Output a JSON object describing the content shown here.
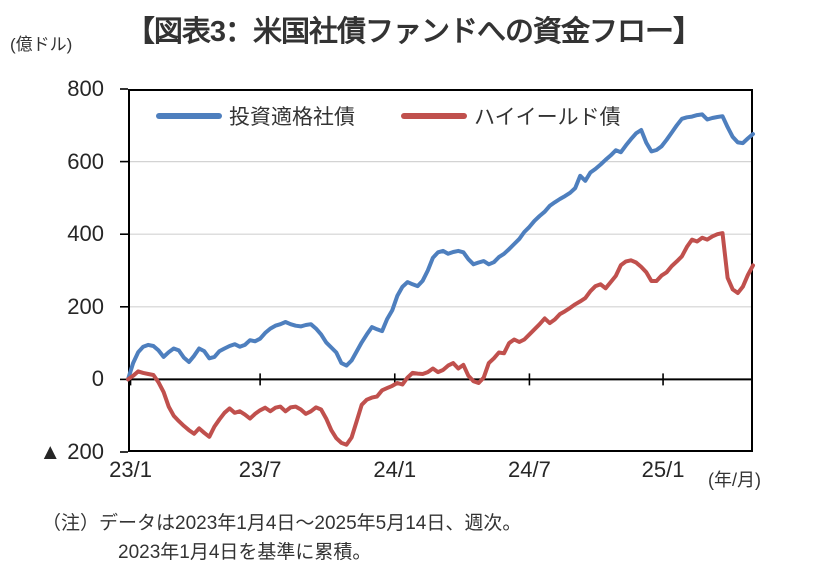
{
  "title": "【図表3：米国社債ファンドへの資金フロー】",
  "unit_label": "(億ドル)",
  "x_unit_label": "(年/月)",
  "notes": [
    "（注）データは2023年1月4日～2025年5月14日、週次。",
    "2023年1月4日を基準に累積。"
  ],
  "colors": {
    "investment_grade": "#4E7FBE",
    "high_yield": "#C0504D",
    "gridline": "#D3D3D3",
    "axis": "#000000",
    "text": "#333333"
  },
  "chart_data": {
    "type": "line",
    "title": "米国社債ファンドへの資金フロー",
    "ylabel": "億ドル",
    "x_range": [
      "2023/1/4",
      "2025/5/14"
    ],
    "x_frequency": "weekly",
    "weeks": 124,
    "ylim": [
      -200,
      800
    ],
    "gridlines": [
      600,
      400,
      200
    ],
    "legend_position": "top-inside",
    "yticks": [
      {
        "label": "800",
        "value": 800
      },
      {
        "label": "600",
        "value": 600
      },
      {
        "label": "400",
        "value": 400
      },
      {
        "label": "200",
        "value": 200
      },
      {
        "label": "0",
        "value": 0
      },
      {
        "label": "▲ 200",
        "value": -200
      }
    ],
    "xticks": [
      {
        "label": "23/1",
        "week": 0.5
      },
      {
        "label": "23/7",
        "week": 26
      },
      {
        "label": "24/1",
        "week": 52.5
      },
      {
        "label": "24/7",
        "week": 79
      },
      {
        "label": "25/1",
        "week": 105.3
      }
    ],
    "series": [
      {
        "name": "投資適格社債",
        "color": "#4E7FBE",
        "values": [
          0,
          45,
          75,
          90,
          95,
          92,
          80,
          62,
          75,
          85,
          80,
          60,
          48,
          65,
          85,
          78,
          58,
          62,
          78,
          85,
          92,
          97,
          90,
          95,
          108,
          105,
          112,
          128,
          140,
          148,
          152,
          158,
          152,
          148,
          146,
          150,
          152,
          140,
          124,
          102,
          88,
          74,
          45,
          38,
          52,
          77,
          102,
          124,
          144,
          138,
          133,
          166,
          190,
          230,
          255,
          268,
          262,
          257,
          272,
          300,
          335,
          350,
          354,
          346,
          351,
          354,
          350,
          331,
          317,
          322,
          326,
          317,
          323,
          337,
          346,
          359,
          373,
          387,
          406,
          420,
          437,
          450,
          462,
          478,
          488,
          497,
          505,
          514,
          527,
          561,
          547,
          570,
          580,
          592,
          605,
          617,
          631,
          626,
          645,
          662,
          678,
          687,
          652,
          628,
          632,
          642,
          660,
          680,
          700,
          718,
          722,
          724,
          728,
          730,
          716,
          720,
          723,
          725,
          695,
          668,
          653,
          651,
          664,
          676
        ]
      },
      {
        "name": "ハイイールド債",
        "color": "#C0504D",
        "values": [
          0,
          10,
          22,
          18,
          15,
          12,
          -8,
          -35,
          -75,
          -100,
          -115,
          -128,
          -140,
          -150,
          -135,
          -147,
          -158,
          -130,
          -110,
          -92,
          -80,
          -92,
          -88,
          -97,
          -108,
          -95,
          -85,
          -78,
          -88,
          -78,
          -75,
          -88,
          -77,
          -75,
          -83,
          -95,
          -88,
          -77,
          -83,
          -108,
          -140,
          -162,
          -175,
          -180,
          -160,
          -115,
          -70,
          -56,
          -50,
          -47,
          -30,
          -24,
          -18,
          -10,
          -14,
          5,
          18,
          16,
          15,
          20,
          30,
          20,
          26,
          38,
          45,
          30,
          40,
          10,
          -5,
          -10,
          5,
          45,
          58,
          74,
          72,
          100,
          110,
          103,
          110,
          124,
          138,
          152,
          168,
          155,
          165,
          180,
          188,
          197,
          207,
          215,
          224,
          243,
          257,
          262,
          251,
          268,
          285,
          315,
          325,
          328,
          322,
          310,
          295,
          271,
          271,
          286,
          295,
          312,
          325,
          339,
          365,
          385,
          380,
          390,
          385,
          394,
          400,
          403,
          280,
          248,
          238,
          255,
          288,
          314
        ]
      }
    ]
  }
}
